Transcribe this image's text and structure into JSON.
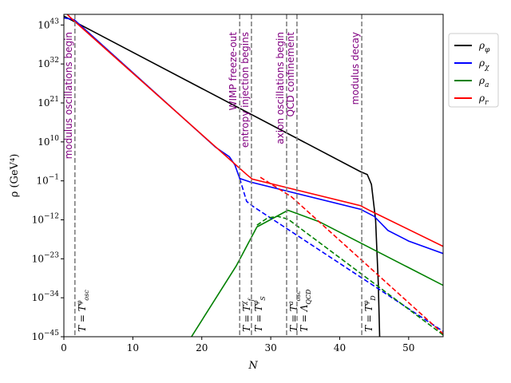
{
  "chart_data": {
    "type": "line",
    "xlabel": "N",
    "ylabel": "ρ (GeV⁴)",
    "xlim": [
      0,
      55
    ],
    "ylim_log10": [
      -45,
      46
    ],
    "y_scale": "log",
    "x_ticks": [
      0,
      10,
      20,
      30,
      40,
      50
    ],
    "y_ticks": [
      {
        "exp": 43,
        "label": "10^43"
      },
      {
        "exp": 32,
        "label": "10^32"
      },
      {
        "exp": 21,
        "label": "10^21"
      },
      {
        "exp": 10,
        "label": "10^10"
      },
      {
        "exp": -1,
        "label": "10^−1"
      },
      {
        "exp": -12,
        "label": "10^−12"
      },
      {
        "exp": -23,
        "label": "10^−23"
      },
      {
        "exp": -34,
        "label": "10^−34"
      },
      {
        "exp": -45,
        "label": "10^−45"
      }
    ],
    "legend_position": "right-outside",
    "series": [
      {
        "name": "ρ_φ",
        "color": "#000000",
        "dashed": false,
        "points": [
          [
            0,
            45.5
          ],
          [
            43,
            1.6
          ],
          [
            44,
            0.8
          ],
          [
            44.6,
            -2
          ],
          [
            45.2,
            -12
          ],
          [
            45.6,
            -30
          ],
          [
            45.8,
            -45
          ]
        ]
      },
      {
        "name": "ρ_χ",
        "color": "#0000ff",
        "dashed": false,
        "points": [
          [
            0,
            45.0
          ],
          [
            1.5,
            44.5
          ],
          [
            22,
            8.5
          ],
          [
            24.0,
            5.8
          ],
          [
            24.8,
            3.5
          ],
          [
            25.5,
            -0.3
          ],
          [
            27,
            -1.3
          ],
          [
            43,
            -9.0
          ],
          [
            45,
            -11.0
          ],
          [
            47,
            -15.0
          ],
          [
            50,
            -18.0
          ],
          [
            55,
            -21.5
          ]
        ]
      },
      {
        "name": "ρ_a",
        "color": "#008000",
        "dashed": false,
        "points": [
          [
            18.5,
            -45
          ],
          [
            25,
            -25
          ],
          [
            28,
            -14.0
          ],
          [
            32.5,
            -9.3
          ],
          [
            37,
            -12.5
          ],
          [
            55,
            -30.5
          ]
        ]
      },
      {
        "name": "ρ_r",
        "color": "#ff0000",
        "dashed": false,
        "points": [
          [
            0,
            47
          ],
          [
            1,
            45.0
          ],
          [
            26.5,
            0.8
          ],
          [
            27.3,
            -0.5
          ],
          [
            43,
            -8.0
          ],
          [
            44.5,
            -9.5
          ],
          [
            55,
            -19.5
          ]
        ]
      }
    ],
    "dashed_series": [
      {
        "color": "#0000ff",
        "points": [
          [
            25.5,
            -0.3
          ],
          [
            26.5,
            -6.8
          ],
          [
            27.5,
            -8.3
          ],
          [
            55,
            -43.5
          ]
        ]
      },
      {
        "color": "#008000",
        "points": [
          [
            28,
            -13.5
          ],
          [
            29.5,
            -11.5
          ],
          [
            31,
            -11.0
          ],
          [
            32.5,
            -11.8
          ],
          [
            55,
            -44.5
          ]
        ]
      },
      {
        "color": "#ff0000",
        "points": [
          [
            28.5,
            0.0
          ],
          [
            33,
            -5.5
          ],
          [
            55,
            -44.2
          ]
        ]
      }
    ],
    "events": [
      {
        "x": 1.6,
        "label": "modulus oscillations begin",
        "temp": "T = T_osc^φ"
      },
      {
        "x": 25.5,
        "label": "WIMP freeze-out",
        "temp": "T = T_f^χ"
      },
      {
        "x": 27.2,
        "label": "entropy injection begins",
        "temp": "T = T_S^φ"
      },
      {
        "x": 32.3,
        "label": "axion oscillations begin",
        "temp": "T = T_osc^a"
      },
      {
        "x": 33.8,
        "label": "QCD confinement",
        "temp": "T = Λ_QCD"
      },
      {
        "x": 43.2,
        "label": "modulus decay",
        "temp": "T = T_D^φ"
      }
    ]
  }
}
